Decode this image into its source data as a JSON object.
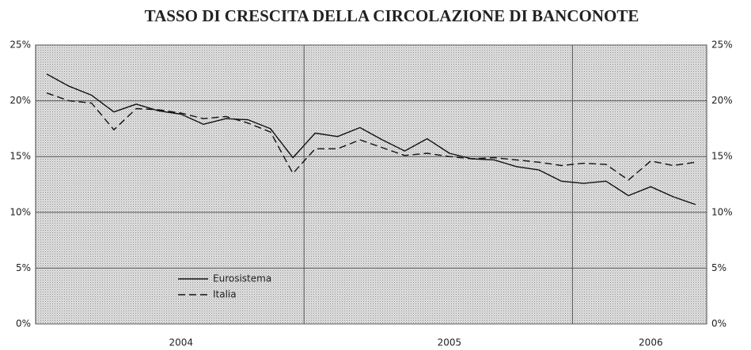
{
  "chart_data": {
    "type": "line",
    "title": "TASSO DI CRESCITA DELLA CIRCOLAZIONE DI BANCONOTE",
    "categories": [
      null,
      null,
      null,
      null,
      null,
      null,
      "2004",
      null,
      null,
      null,
      null,
      null,
      null,
      null,
      null,
      null,
      null,
      null,
      "2005",
      null,
      null,
      null,
      null,
      null,
      null,
      null,
      null,
      "2006",
      null,
      null
    ],
    "series": [
      {
        "name": "Eurosistema",
        "color": "#111111",
        "style": "solid",
        "values": [
          22.4,
          21.3,
          20.5,
          19.0,
          19.7,
          19.1,
          18.8,
          17.9,
          18.4,
          18.3,
          17.5,
          14.9,
          17.1,
          16.8,
          17.6,
          16.5,
          15.5,
          16.6,
          15.3,
          14.8,
          14.7,
          14.1,
          13.8,
          12.8,
          12.6,
          12.8,
          11.5,
          12.3,
          11.4,
          10.7
        ]
      },
      {
        "name": "Italia",
        "color": "#111111",
        "style": "dashed",
        "values": [
          20.7,
          20.0,
          19.8,
          17.4,
          19.3,
          19.2,
          18.9,
          18.4,
          18.6,
          18.0,
          17.2,
          13.5,
          15.7,
          15.7,
          16.5,
          15.8,
          15.1,
          15.3,
          15.0,
          14.8,
          14.9,
          14.7,
          14.5,
          14.2,
          14.4,
          14.3,
          12.9,
          14.6,
          14.2,
          14.5
        ]
      }
    ],
    "ylim": [
      0,
      25
    ],
    "yticks": [
      {
        "value": 0,
        "label": "0%"
      },
      {
        "value": 5,
        "label": "5%"
      },
      {
        "value": 10,
        "label": "10%"
      },
      {
        "value": 15,
        "label": "15%"
      },
      {
        "value": 20,
        "label": "20%"
      },
      {
        "value": 25,
        "label": "25%"
      }
    ],
    "y2lim": [
      0,
      25
    ],
    "y2ticks": [
      {
        "value": 0,
        "label": "0%"
      },
      {
        "value": 5,
        "label": "5%"
      },
      {
        "value": 10,
        "label": "10%"
      },
      {
        "value": 15,
        "label": "15%"
      },
      {
        "value": 20,
        "label": "20%"
      },
      {
        "value": 25,
        "label": "25%"
      }
    ],
    "grid": true,
    "legend": "lower left"
  }
}
